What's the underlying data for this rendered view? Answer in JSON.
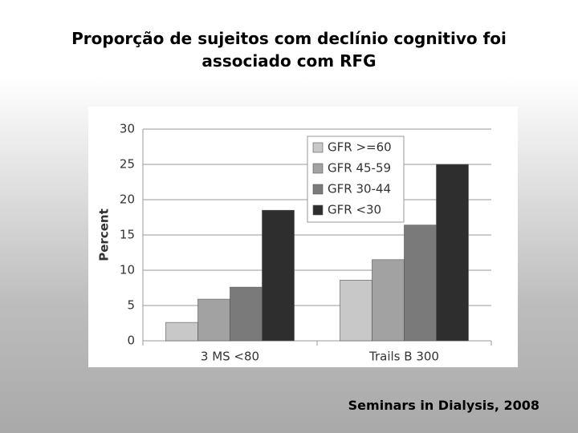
{
  "chart_data": {
    "type": "bar",
    "title": "Proporção de sujeitos com declínio cognitivo foi associado com RFG",
    "ylabel": "Percent",
    "categories": [
      "3 MS <80",
      "Trails B 300"
    ],
    "series": [
      {
        "name": "GFR >=60",
        "color": "#c8c8c8",
        "values": [
          2.6,
          8.6
        ]
      },
      {
        "name": "GFR 45-59",
        "color": "#a2a2a2",
        "values": [
          5.9,
          11.5
        ]
      },
      {
        "name": "GFR 30-44",
        "color": "#7a7a7a",
        "values": [
          7.6,
          16.4
        ]
      },
      {
        "name": "GFR <30",
        "color": "#2e2e2e",
        "values": [
          18.5,
          25
        ]
      }
    ],
    "ylim": [
      0,
      30
    ],
    "yticks": [
      0,
      5,
      10,
      15,
      20,
      25,
      30
    ],
    "grid": true,
    "legend": "top-center",
    "source": "Seminars in Dialysis, 2008"
  }
}
